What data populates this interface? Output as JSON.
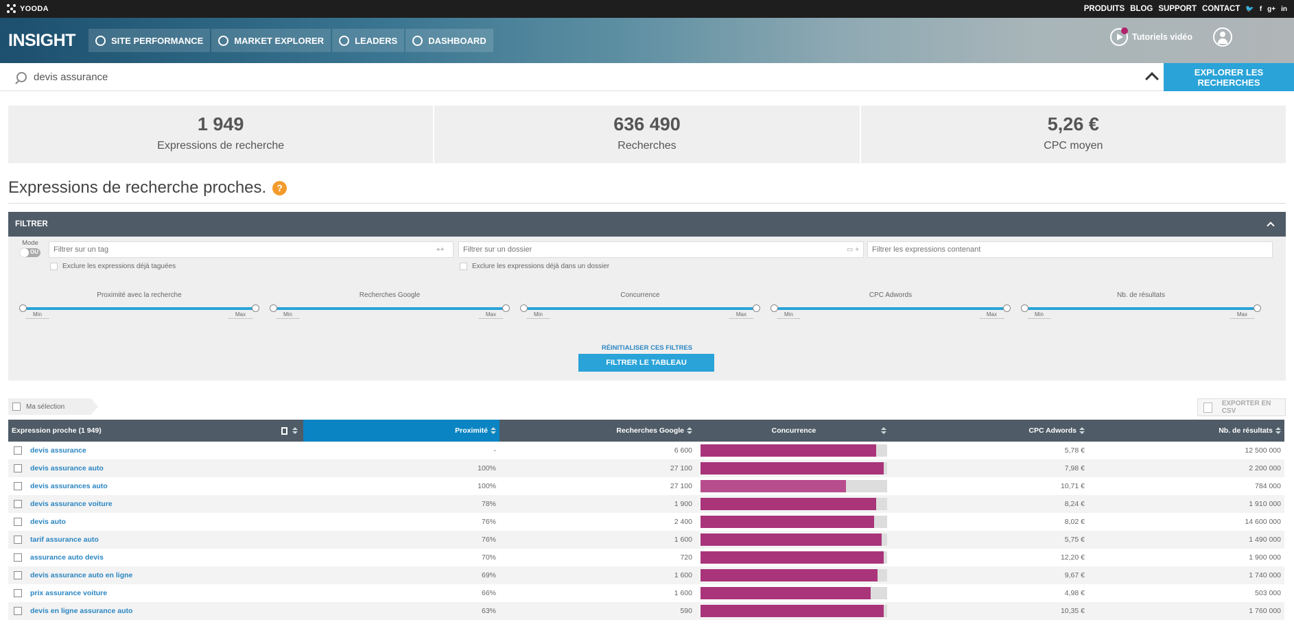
{
  "topbar": {
    "brand": "YOODA",
    "links": [
      "PRODUITS",
      "BLOG",
      "SUPPORT",
      "CONTACT"
    ],
    "social_icons": [
      "twitter-icon",
      "facebook-icon",
      "google-plus-icon",
      "linkedin-icon"
    ]
  },
  "header": {
    "app_title": "INSIGHT",
    "nav": [
      {
        "label": "SITE PERFORMANCE",
        "icon": "pulse-icon"
      },
      {
        "label": "MARKET EXPLORER",
        "icon": "search-icon"
      },
      {
        "label": "LEADERS",
        "icon": "globe-icon"
      },
      {
        "label": "DASHBOARD",
        "icon": "gauge-icon"
      }
    ],
    "tutorials": "Tutoriels vidéo"
  },
  "search": {
    "value": "devis assurance",
    "button": "EXPLORER LES RECHERCHES"
  },
  "stats": [
    {
      "value": "1 949",
      "label": "Expressions de recherche"
    },
    {
      "value": "636 490",
      "label": "Recherches"
    },
    {
      "value": "5,26 €",
      "label": "CPC moyen"
    }
  ],
  "section": {
    "title": "Expressions de recherche proches.",
    "help": "?"
  },
  "filter": {
    "title": "FILTRER",
    "mode_label": "Mode",
    "mode_toggle": "OU",
    "tag_placeholder": "Filtrer sur un tag",
    "folder_placeholder": "Filtrer sur un dossier",
    "contains_placeholder": "Filtrer les expressions contenant",
    "exclude_tagged": "Exclure les expressions déjà taguées",
    "exclude_folder": "Exclure les expressions déjà dans un dossier",
    "sliders": [
      {
        "label": "Proximité avec la recherche",
        "min": "Min",
        "max": "Max"
      },
      {
        "label": "Recherches Google",
        "min": "Min",
        "max": "Max"
      },
      {
        "label": "Concurrence",
        "min": "Min",
        "max": "Max"
      },
      {
        "label": "CPC Adwords",
        "min": "Min",
        "max": "Max"
      },
      {
        "label": "Nb. de résultats",
        "min": "Min",
        "max": "Max"
      }
    ],
    "reset": "RÉINITIALISER CES FILTRES",
    "apply": "FILTRER LE TABLEAU"
  },
  "selection": {
    "label": "Ma sélection",
    "export": "EXPORTER EN CSV"
  },
  "table": {
    "headers": {
      "expression": "Expression proche (1 949)",
      "proximity": "Proximité",
      "searches": "Recherches Google",
      "competition": "Concurrence",
      "cpc": "CPC Adwords",
      "results": "Nb. de résultats"
    },
    "rows": [
      {
        "kw": "devis assurance",
        "prox": "-",
        "searches": "6 600",
        "competition": 0.94,
        "cpc": "5,78 €",
        "results": "12 500 000"
      },
      {
        "kw": "devis assurance auto",
        "prox": "100%",
        "searches": "27 100",
        "competition": 0.98,
        "cpc": "7,98 €",
        "results": "2 200 000"
      },
      {
        "kw": "devis assurances auto",
        "prox": "100%",
        "searches": "27 100",
        "competition": 0.78,
        "cpc": "10,71 €",
        "results": "784 000"
      },
      {
        "kw": "devis assurance voiture",
        "prox": "78%",
        "searches": "1 900",
        "competition": 0.94,
        "cpc": "8,24 €",
        "results": "1 910 000"
      },
      {
        "kw": "devis auto",
        "prox": "76%",
        "searches": "2 400",
        "competition": 0.93,
        "cpc": "8,02 €",
        "results": "14 600 000"
      },
      {
        "kw": "tarif assurance auto",
        "prox": "76%",
        "searches": "1 600",
        "competition": 0.97,
        "cpc": "5,75 €",
        "results": "1 490 000"
      },
      {
        "kw": "assurance auto devis",
        "prox": "70%",
        "searches": "720",
        "competition": 0.98,
        "cpc": "12,20 €",
        "results": "1 900 000"
      },
      {
        "kw": "devis assurance auto en ligne",
        "prox": "69%",
        "searches": "1 600",
        "competition": 0.95,
        "cpc": "9,67 €",
        "results": "1 740 000"
      },
      {
        "kw": "prix assurance voiture",
        "prox": "66%",
        "searches": "1 600",
        "competition": 0.91,
        "cpc": "4,98 €",
        "results": "503 000"
      },
      {
        "kw": "devis en ligne assurance auto",
        "prox": "63%",
        "searches": "590",
        "competition": 0.98,
        "cpc": "10,35 €",
        "results": "1 760 000"
      }
    ]
  }
}
